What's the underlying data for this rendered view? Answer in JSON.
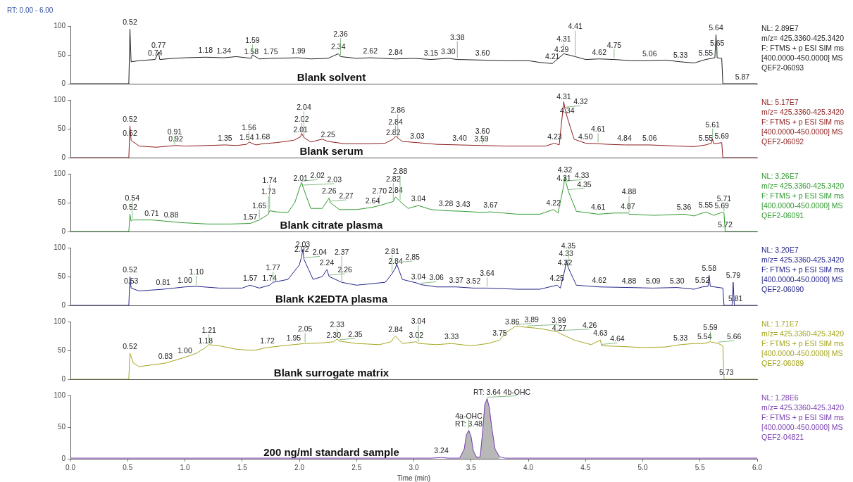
{
  "chart_data": [
    {
      "type": "line",
      "title": "RT: 0.00 - 6.00",
      "xlim": [
        0,
        6
      ],
      "ylim": [
        0,
        100
      ],
      "yticks": [
        0,
        50,
        100
      ],
      "tick_labels": "y",
      "series": [
        {
          "color": "#1e1e1e",
          "x": [
            0,
            0.51,
            0.52,
            0.53,
            0.6,
            0.74,
            0.77,
            0.78,
            0.9,
            1.0,
            1.18,
            1.34,
            1.45,
            1.58,
            1.59,
            1.65,
            1.75,
            1.99,
            2.1,
            2.25,
            2.34,
            2.36,
            2.5,
            2.62,
            2.84,
            3.0,
            3.15,
            3.3,
            3.38,
            3.6,
            3.8,
            4.0,
            4.1,
            4.21,
            4.25,
            4.31,
            4.41,
            4.5,
            4.62,
            4.75,
            4.9,
            5.06,
            5.2,
            5.33,
            5.45,
            5.55,
            5.63,
            5.64,
            5.65,
            5.69,
            5.7,
            6
          ],
          "values": [
            0,
            0,
            95,
            38,
            40,
            42,
            55,
            42,
            44,
            45,
            46,
            45,
            47,
            44,
            50,
            43,
            44,
            45,
            43,
            44,
            52,
            47,
            44,
            45,
            43,
            44,
            42,
            44,
            42,
            41,
            40,
            40,
            37,
            35,
            42,
            52,
            47,
            42,
            43,
            42,
            40,
            40,
            41,
            38,
            36,
            42,
            45,
            85,
            45,
            44,
            0,
            0
          ]
        }
      ],
      "annotations": [
        "Blank solvent",
        "NL: 2.89E7",
        "m/z= 425.3360-425.3420",
        "F: FTMS + p ESI SIM ms",
        "[400.0000-450.0000] MS",
        "QEF2-06093",
        {
          "text": "0.52",
          "x": 0.52,
          "y": 95
        },
        {
          "text": "0.74",
          "x": 0.74,
          "y": 42
        },
        {
          "text": "0.77",
          "x": 0.77,
          "y": 55
        },
        {
          "text": "1.18",
          "x": 1.18,
          "y": 46
        },
        {
          "text": "1.34",
          "x": 1.34,
          "y": 45
        },
        {
          "text": "1.58",
          "x": 1.58,
          "y": 44
        },
        {
          "text": "1.59",
          "x": 1.59,
          "y": 50
        },
        {
          "text": "1.75",
          "x": 1.75,
          "y": 44
        },
        {
          "text": "1.99",
          "x": 1.99,
          "y": 45
        },
        {
          "text": "2.34",
          "x": 2.34,
          "y": 52
        },
        {
          "text": "2.36",
          "x": 2.36,
          "y": 47
        },
        {
          "text": "2.62",
          "x": 2.62,
          "y": 45
        },
        {
          "text": "2.84",
          "x": 2.84,
          "y": 43
        },
        {
          "text": "3.15",
          "x": 3.15,
          "y": 42
        },
        {
          "text": "3.30",
          "x": 3.3,
          "y": 44
        },
        {
          "text": "3.38",
          "x": 3.38,
          "y": 42
        },
        {
          "text": "3.60",
          "x": 3.6,
          "y": 41
        },
        {
          "text": "4.21",
          "x": 4.21,
          "y": 35
        },
        {
          "text": "4.29",
          "x": 4.29,
          "y": 48
        },
        {
          "text": "4.31",
          "x": 4.31,
          "y": 52
        },
        {
          "text": "4.41",
          "x": 4.41,
          "y": 47
        },
        {
          "text": "4.62",
          "x": 4.62,
          "y": 43
        },
        {
          "text": "4.75",
          "x": 4.75,
          "y": 42
        },
        {
          "text": "5.06",
          "x": 5.06,
          "y": 40
        },
        {
          "text": "5.33",
          "x": 5.33,
          "y": 38
        },
        {
          "text": "5.55",
          "x": 5.55,
          "y": 42
        },
        {
          "text": "5.64",
          "x": 5.64,
          "y": 85
        },
        {
          "text": "5.65",
          "x": 5.65,
          "y": 45
        },
        {
          "text": "5.87",
          "x": 5.87,
          "y": 0
        }
      ]
    },
    {
      "type": "line",
      "xlim": [
        0,
        6
      ],
      "ylim": [
        0,
        100
      ],
      "yticks": [
        0,
        50,
        100
      ],
      "tick_labels": "y",
      "series": [
        {
          "color": "#8c1c1c",
          "x": [
            0,
            0.51,
            0.52,
            0.53,
            0.6,
            0.75,
            0.92,
            1.0,
            1.2,
            1.35,
            1.45,
            1.54,
            1.56,
            1.62,
            1.68,
            1.8,
            1.95,
            2.01,
            2.02,
            2.04,
            2.1,
            2.2,
            2.25,
            2.4,
            2.6,
            2.75,
            2.82,
            2.84,
            2.9,
            3.03,
            3.2,
            3.4,
            3.59,
            3.6,
            3.8,
            4.0,
            4.15,
            4.23,
            4.27,
            4.31,
            4.32,
            4.34,
            4.4,
            4.5,
            4.61,
            4.7,
            4.84,
            5.06,
            5.3,
            5.45,
            5.55,
            5.6,
            5.61,
            5.62,
            5.69,
            5.7,
            6
          ],
          "values": [
            0,
            0,
            55,
            30,
            20,
            18,
            21,
            20,
            21,
            22,
            21,
            23,
            27,
            22,
            24,
            26,
            30,
            36,
            42,
            35,
            27,
            32,
            28,
            24,
            24,
            25,
            32,
            37,
            28,
            26,
            23,
            22,
            21,
            21,
            20,
            20,
            20,
            25,
            22,
            97,
            85,
            70,
            32,
            25,
            24,
            23,
            22,
            22,
            20,
            19,
            22,
            25,
            32,
            24,
            26,
            0,
            0
          ]
        }
      ],
      "annotations": [
        "Blank serum",
        "NL: 5.17E7",
        "m/z= 425.3360-425.3420",
        "F: FTMS + p ESI SIM ms",
        "[400.0000-450.0000] MS",
        "QEF2-06092",
        {
          "text": "0.52",
          "x": 0.52,
          "y": 55
        },
        {
          "text": "0.52",
          "x": 0.52,
          "y": 30
        },
        {
          "text": "0.92",
          "x": 0.92,
          "y": 21
        },
        {
          "text": "0.91",
          "x": 0.91,
          "y": 20
        },
        {
          "text": "1.35",
          "x": 1.35,
          "y": 22
        },
        {
          "text": "1.54",
          "x": 1.54,
          "y": 23
        },
        {
          "text": "1.56",
          "x": 1.56,
          "y": 27
        },
        {
          "text": "1.68",
          "x": 1.68,
          "y": 24
        },
        {
          "text": "2.01",
          "x": 2.01,
          "y": 36
        },
        {
          "text": "2.02",
          "x": 2.02,
          "y": 42
        },
        {
          "text": "2.04",
          "x": 2.04,
          "y": 35
        },
        {
          "text": "2.25",
          "x": 2.25,
          "y": 28
        },
        {
          "text": "2.82",
          "x": 2.82,
          "y": 32
        },
        {
          "text": "2.84",
          "x": 2.84,
          "y": 37
        },
        {
          "text": "2.86",
          "x": 2.86,
          "y": 30
        },
        {
          "text": "3.03",
          "x": 3.03,
          "y": 26
        },
        {
          "text": "3.40",
          "x": 3.4,
          "y": 22
        },
        {
          "text": "3.59",
          "x": 3.59,
          "y": 21
        },
        {
          "text": "3.60",
          "x": 3.6,
          "y": 21
        },
        {
          "text": "4.23",
          "x": 4.23,
          "y": 25
        },
        {
          "text": "4.31",
          "x": 4.31,
          "y": 97
        },
        {
          "text": "4.32",
          "x": 4.32,
          "y": 85
        },
        {
          "text": "4.34",
          "x": 4.34,
          "y": 70
        },
        {
          "text": "4.50",
          "x": 4.5,
          "y": 25
        },
        {
          "text": "4.61",
          "x": 4.61,
          "y": 24
        },
        {
          "text": "4.84",
          "x": 4.84,
          "y": 22
        },
        {
          "text": "5.06",
          "x": 5.06,
          "y": 22
        },
        {
          "text": "5.55",
          "x": 5.55,
          "y": 22
        },
        {
          "text": "5.61",
          "x": 5.61,
          "y": 32
        },
        {
          "text": "5.69",
          "x": 5.69,
          "y": 26
        }
      ]
    },
    {
      "type": "line",
      "xlim": [
        0,
        6
      ],
      "ylim": [
        0,
        100
      ],
      "yticks": [
        0,
        50,
        100
      ],
      "tick_labels": "y",
      "series": [
        {
          "color": "#2f9a2f",
          "x": [
            0,
            0.51,
            0.52,
            0.53,
            0.54,
            0.71,
            0.88,
            1.0,
            1.2,
            1.4,
            1.57,
            1.65,
            1.73,
            1.74,
            1.8,
            1.9,
            1.96,
            2.01,
            2.02,
            2.03,
            2.1,
            2.2,
            2.26,
            2.27,
            2.35,
            2.5,
            2.64,
            2.7,
            2.82,
            2.84,
            2.88,
            2.95,
            3.04,
            3.15,
            3.28,
            3.43,
            3.6,
            3.67,
            3.9,
            4.1,
            4.22,
            4.26,
            4.31,
            4.32,
            4.33,
            4.35,
            4.42,
            4.61,
            4.75,
            4.87,
            4.88,
            5.1,
            5.36,
            5.45,
            5.55,
            5.62,
            5.69,
            5.71,
            5.72,
            6
          ],
          "values": [
            0,
            0,
            30,
            18,
            20,
            20,
            17,
            15,
            13,
            13,
            14,
            20,
            30,
            36,
            34,
            33,
            50,
            80,
            85,
            78,
            40,
            40,
            58,
            50,
            38,
            38,
            42,
            45,
            52,
            60,
            52,
            40,
            45,
            38,
            36,
            35,
            33,
            34,
            30,
            30,
            38,
            32,
            80,
            95,
            85,
            70,
            35,
            30,
            32,
            32,
            30,
            28,
            30,
            27,
            34,
            28,
            33,
            32,
            0,
            0
          ]
        }
      ],
      "annotations": [
        "Blank citrate plasma",
        "NL: 3.26E7",
        "m/z= 425.3360-425.3420",
        "F: FTMS + p ESI SIM ms",
        "[400.0000-450.0000] MS",
        "QEF2-06091",
        {
          "text": "0.52",
          "x": 0.52,
          "y": 30
        },
        {
          "text": "0.54",
          "x": 0.54,
          "y": 20
        },
        {
          "text": "0.71",
          "x": 0.71,
          "y": 20
        },
        {
          "text": "0.88",
          "x": 0.88,
          "y": 17
        },
        {
          "text": "1.57",
          "x": 1.57,
          "y": 14
        },
        {
          "text": "1.65",
          "x": 1.65,
          "y": 20
        },
        {
          "text": "1.73",
          "x": 1.73,
          "y": 30
        },
        {
          "text": "1.74",
          "x": 1.74,
          "y": 36
        },
        {
          "text": "2.01",
          "x": 2.01,
          "y": 80
        },
        {
          "text": "2.02",
          "x": 2.02,
          "y": 85
        },
        {
          "text": "2.03",
          "x": 2.03,
          "y": 78
        },
        {
          "text": "2.26",
          "x": 2.26,
          "y": 58
        },
        {
          "text": "2.27",
          "x": 2.27,
          "y": 50
        },
        {
          "text": "2.64",
          "x": 2.64,
          "y": 42
        },
        {
          "text": "2.70",
          "x": 2.7,
          "y": 45
        },
        {
          "text": "2.82",
          "x": 2.82,
          "y": 52
        },
        {
          "text": "2.84",
          "x": 2.84,
          "y": 60
        },
        {
          "text": "2.88",
          "x": 2.88,
          "y": 52
        },
        {
          "text": "3.04",
          "x": 3.04,
          "y": 45
        },
        {
          "text": "3.28",
          "x": 3.28,
          "y": 36
        },
        {
          "text": "3.43",
          "x": 3.43,
          "y": 35
        },
        {
          "text": "3.67",
          "x": 3.67,
          "y": 34
        },
        {
          "text": "4.22",
          "x": 4.22,
          "y": 38
        },
        {
          "text": "4.31",
          "x": 4.31,
          "y": 80
        },
        {
          "text": "4.32",
          "x": 4.32,
          "y": 95
        },
        {
          "text": "4.33",
          "x": 4.33,
          "y": 85
        },
        {
          "text": "4.35",
          "x": 4.35,
          "y": 70
        },
        {
          "text": "4.61",
          "x": 4.61,
          "y": 30
        },
        {
          "text": "4.87",
          "x": 4.87,
          "y": 32
        },
        {
          "text": "4.88",
          "x": 4.88,
          "y": 30
        },
        {
          "text": "5.36",
          "x": 5.36,
          "y": 30
        },
        {
          "text": "5.55",
          "x": 5.55,
          "y": 34
        },
        {
          "text": "5.69",
          "x": 5.69,
          "y": 33
        },
        {
          "text": "5.71",
          "x": 5.71,
          "y": 32
        },
        {
          "text": "5.72",
          "x": 5.72,
          "y": 0
        }
      ]
    },
    {
      "type": "line",
      "xlim": [
        0,
        6
      ],
      "ylim": [
        0,
        100
      ],
      "yticks": [
        0,
        50,
        100
      ],
      "tick_labels": "y",
      "series": [
        {
          "color": "#24248a",
          "x": [
            0,
            0.51,
            0.52,
            0.53,
            0.6,
            0.81,
            1.0,
            1.1,
            1.3,
            1.5,
            1.57,
            1.65,
            1.74,
            1.77,
            1.9,
            2.0,
            2.02,
            2.03,
            2.04,
            2.12,
            2.2,
            2.24,
            2.26,
            2.37,
            2.5,
            2.65,
            2.75,
            2.81,
            2.84,
            2.85,
            2.9,
            3.04,
            3.06,
            3.2,
            3.37,
            3.52,
            3.64,
            3.9,
            4.1,
            4.25,
            4.28,
            4.32,
            4.33,
            4.35,
            4.42,
            4.62,
            4.88,
            5.09,
            5.3,
            5.45,
            5.52,
            5.57,
            5.58,
            5.59,
            5.7,
            5.71,
            5.78,
            5.79,
            5.8,
            6
          ],
          "values": [
            0,
            0,
            50,
            30,
            25,
            28,
            32,
            33,
            30,
            30,
            35,
            30,
            35,
            40,
            45,
            70,
            85,
            97,
            80,
            45,
            50,
            62,
            50,
            40,
            35,
            38,
            40,
            55,
            65,
            72,
            45,
            38,
            36,
            32,
            32,
            30,
            30,
            28,
            28,
            35,
            30,
            62,
            78,
            65,
            35,
            32,
            31,
            30,
            31,
            28,
            32,
            33,
            52,
            33,
            30,
            0,
            0,
            40,
            0,
            0
          ]
        }
      ],
      "annotations": [
        "Blank K2EDTA plasma",
        "NL: 3.20E7",
        "m/z= 425.3360-425.3420",
        "F: FTMS + p ESI SIM ms",
        "[400.0000-450.0000] MS",
        "QEF2-06090",
        {
          "text": "0.52",
          "x": 0.52,
          "y": 50
        },
        {
          "text": "0.53",
          "x": 0.53,
          "y": 30
        },
        {
          "text": "0.81",
          "x": 0.81,
          "y": 28
        },
        {
          "text": "1.00",
          "x": 1.0,
          "y": 32
        },
        {
          "text": "1.10",
          "x": 1.1,
          "y": 33
        },
        {
          "text": "1.57",
          "x": 1.57,
          "y": 35
        },
        {
          "text": "1.74",
          "x": 1.74,
          "y": 35
        },
        {
          "text": "1.77",
          "x": 1.77,
          "y": 40
        },
        {
          "text": "2.02",
          "x": 2.02,
          "y": 85
        },
        {
          "text": "2.03",
          "x": 2.03,
          "y": 97
        },
        {
          "text": "2.04",
          "x": 2.04,
          "y": 80
        },
        {
          "text": "2.24",
          "x": 2.24,
          "y": 62
        },
        {
          "text": "2.26",
          "x": 2.26,
          "y": 50
        },
        {
          "text": "2.37",
          "x": 2.37,
          "y": 40
        },
        {
          "text": "2.84",
          "x": 2.84,
          "y": 65
        },
        {
          "text": "2.81",
          "x": 2.81,
          "y": 55
        },
        {
          "text": "2.85",
          "x": 2.85,
          "y": 72
        },
        {
          "text": "3.04",
          "x": 3.04,
          "y": 38
        },
        {
          "text": "3.06",
          "x": 3.06,
          "y": 36
        },
        {
          "text": "3.37",
          "x": 3.37,
          "y": 32
        },
        {
          "text": "3.52",
          "x": 3.52,
          "y": 30
        },
        {
          "text": "3.64",
          "x": 3.64,
          "y": 30
        },
        {
          "text": "4.25",
          "x": 4.25,
          "y": 35
        },
        {
          "text": "4.32",
          "x": 4.32,
          "y": 62
        },
        {
          "text": "4.33",
          "x": 4.33,
          "y": 78
        },
        {
          "text": "4.35",
          "x": 4.35,
          "y": 65
        },
        {
          "text": "4.62",
          "x": 4.62,
          "y": 32
        },
        {
          "text": "4.88",
          "x": 4.88,
          "y": 31
        },
        {
          "text": "5.09",
          "x": 5.09,
          "y": 30
        },
        {
          "text": "5.30",
          "x": 5.3,
          "y": 31
        },
        {
          "text": "5.52",
          "x": 5.52,
          "y": 32
        },
        {
          "text": "5.58",
          "x": 5.58,
          "y": 52
        },
        {
          "text": "5.79",
          "x": 5.79,
          "y": 40
        },
        {
          "text": "5.81",
          "x": 5.81,
          "y": 0
        }
      ]
    },
    {
      "type": "line",
      "xlim": [
        0,
        6
      ],
      "ylim": [
        0,
        100
      ],
      "yticks": [
        0,
        50,
        100
      ],
      "tick_labels": "y",
      "series": [
        {
          "color": "#a5a51e",
          "x": [
            0,
            0.51,
            0.52,
            0.55,
            0.6,
            0.83,
            1.0,
            1.1,
            1.18,
            1.21,
            1.3,
            1.45,
            1.6,
            1.72,
            1.85,
            1.95,
            2.05,
            2.2,
            2.3,
            2.33,
            2.35,
            2.5,
            2.7,
            2.8,
            2.84,
            2.9,
            3.02,
            3.04,
            3.2,
            3.33,
            3.5,
            3.65,
            3.75,
            3.8,
            3.86,
            3.89,
            3.99,
            4.1,
            4.26,
            4.27,
            4.4,
            4.55,
            4.63,
            4.64,
            4.8,
            5.0,
            5.2,
            5.33,
            5.45,
            5.54,
            5.59,
            5.66,
            5.7,
            5.71,
            6
          ],
          "values": [
            0,
            0,
            45,
            28,
            22,
            28,
            38,
            45,
            55,
            60,
            58,
            52,
            50,
            55,
            58,
            60,
            62,
            63,
            65,
            70,
            66,
            62,
            60,
            65,
            75,
            62,
            65,
            62,
            60,
            62,
            58,
            62,
            68,
            80,
            88,
            92,
            90,
            88,
            82,
            80,
            68,
            60,
            68,
            58,
            57,
            55,
            56,
            60,
            62,
            62,
            65,
            62,
            58,
            0,
            0
          ]
        }
      ],
      "annotations": [
        "Blank surrogate matrix",
        "NL: 1.71E7",
        "m/z= 425.3360-425.3420",
        "F: FTMS + p ESI SIM ms",
        "[400.0000-450.0000] MS",
        "QEF2-06089",
        {
          "text": "0.52",
          "x": 0.52,
          "y": 45
        },
        {
          "text": "0.83",
          "x": 0.83,
          "y": 28
        },
        {
          "text": "1.00",
          "x": 1.0,
          "y": 38
        },
        {
          "text": "1.18",
          "x": 1.18,
          "y": 55
        },
        {
          "text": "1.21",
          "x": 1.21,
          "y": 60
        },
        {
          "text": "1.72",
          "x": 1.72,
          "y": 55
        },
        {
          "text": "1.95",
          "x": 1.95,
          "y": 60
        },
        {
          "text": "2.05",
          "x": 2.05,
          "y": 62
        },
        {
          "text": "2.30",
          "x": 2.3,
          "y": 65
        },
        {
          "text": "2.33",
          "x": 2.33,
          "y": 70
        },
        {
          "text": "2.35",
          "x": 2.35,
          "y": 66
        },
        {
          "text": "2.84",
          "x": 2.84,
          "y": 75
        },
        {
          "text": "3.02",
          "x": 3.02,
          "y": 65
        },
        {
          "text": "3.04",
          "x": 3.04,
          "y": 62
        },
        {
          "text": "3.33",
          "x": 3.33,
          "y": 62
        },
        {
          "text": "3.75",
          "x": 3.75,
          "y": 68
        },
        {
          "text": "3.86",
          "x": 3.86,
          "y": 88
        },
        {
          "text": "3.89",
          "x": 3.89,
          "y": 92
        },
        {
          "text": "3.99",
          "x": 3.99,
          "y": 90
        },
        {
          "text": "4.26",
          "x": 4.26,
          "y": 82
        },
        {
          "text": "4.27",
          "x": 4.27,
          "y": 80
        },
        {
          "text": "4.63",
          "x": 4.63,
          "y": 68
        },
        {
          "text": "4.64",
          "x": 4.64,
          "y": 58
        },
        {
          "text": "5.33",
          "x": 5.33,
          "y": 60
        },
        {
          "text": "5.54",
          "x": 5.54,
          "y": 62
        },
        {
          "text": "5.59",
          "x": 5.59,
          "y": 65
        },
        {
          "text": "5.66",
          "x": 5.66,
          "y": 62
        },
        {
          "text": "5.73",
          "x": 5.73,
          "y": 0
        }
      ]
    },
    {
      "type": "line",
      "xlabel": "Time (min)",
      "xlim": [
        0,
        6
      ],
      "ylim": [
        0,
        100
      ],
      "yticks": [
        0,
        50,
        100
      ],
      "xticks": [
        {
          "value": 0,
          "label": "0.0"
        },
        0.5,
        {
          "value": 1,
          "label": "1.0"
        },
        1.5,
        {
          "value": 2,
          "label": "2.0"
        },
        2.5,
        {
          "value": 3,
          "label": "3.0"
        },
        3.5,
        {
          "value": 4,
          "label": "4.0"
        },
        4.5,
        {
          "value": 5,
          "label": "5.0"
        },
        5.5,
        {
          "value": 6,
          "label": "6.0"
        }
      ],
      "series": [
        {
          "color": "#7a3fb0",
          "x": [
            0,
            3.15,
            3.24,
            3.3,
            3.4,
            3.44,
            3.46,
            3.48,
            3.5,
            3.52,
            3.55,
            3.58,
            3.6,
            3.62,
            3.64,
            3.66,
            3.68,
            3.71,
            3.75,
            3.8,
            6
          ],
          "values": [
            1,
            1,
            2,
            1,
            1,
            15,
            38,
            45,
            35,
            12,
            2,
            3,
            40,
            85,
            95,
            80,
            50,
            15,
            3,
            1,
            1
          ]
        },
        {
          "type": "area",
          "color": "#b8b8b8",
          "x": [
            3.4,
            3.44,
            3.46,
            3.48,
            3.5,
            3.52,
            3.55,
            3.58,
            3.6,
            3.62,
            3.64,
            3.66,
            3.68,
            3.71,
            3.75
          ],
          "values": [
            1,
            15,
            38,
            45,
            35,
            12,
            2,
            3,
            40,
            85,
            95,
            80,
            50,
            15,
            3
          ]
        }
      ],
      "annotations": [
        "200 ng/ml standard sample",
        "NL: 1.28E6",
        "m/z= 425.3360-425.3420",
        "F: FTMS + p ESI SIM ms",
        "[400.0000-450.0000] MS",
        "QEF2-04821",
        {
          "text": "3.24",
          "x": 3.24,
          "y": 2
        },
        {
          "text": "RT: 3.48",
          "x": 3.48,
          "y": 45
        },
        {
          "text": "RT: 3.64",
          "x": 3.64,
          "y": 95
        },
        {
          "text": "4a-OHC",
          "x": 3.48,
          "y": 45
        },
        {
          "text": "4b-OHC",
          "x": 3.64,
          "y": 95
        }
      ]
    }
  ]
}
